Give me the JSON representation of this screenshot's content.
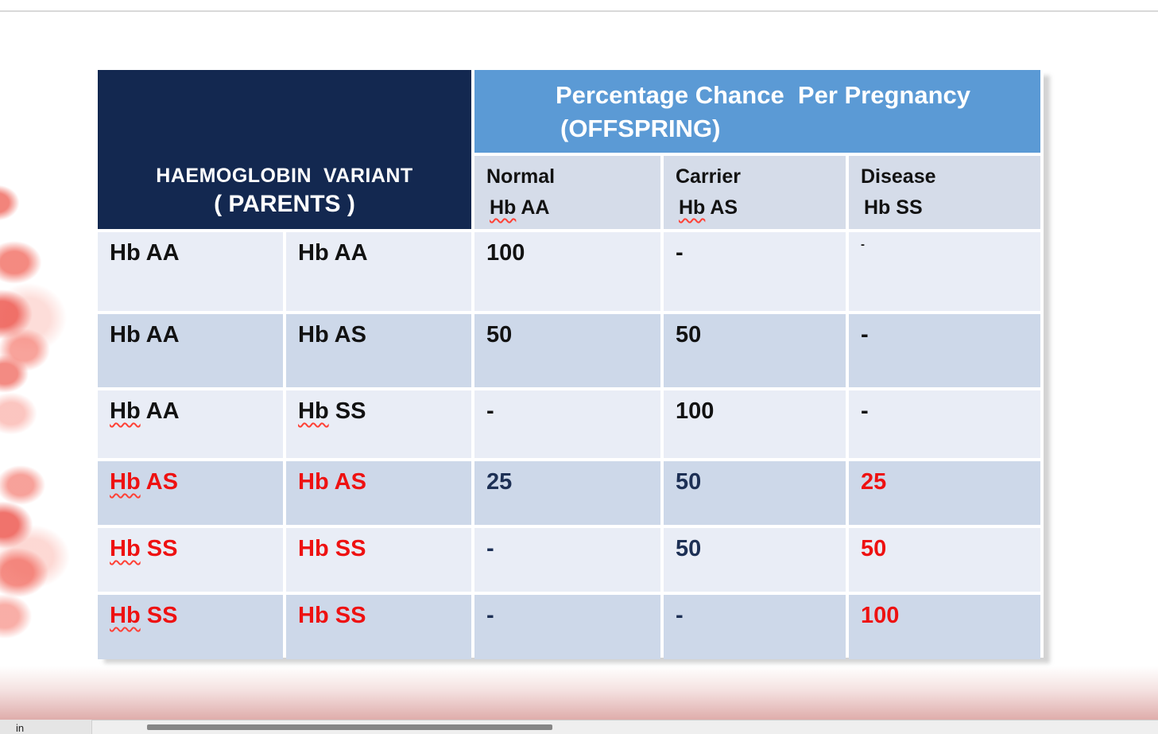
{
  "palette": {
    "header_navy": "#132850",
    "header_blue": "#5b9ad5",
    "subheader_bg": "#d5dce9",
    "row_light": "#e9edf6",
    "row_dark": "#cdd8e9",
    "text_black": "#121212",
    "text_navy": "#1d3055",
    "text_red": "#ee1111",
    "squiggle_red": "#ff4136",
    "bottom_gradient_pink": "#dfadab"
  },
  "slide": {
    "table": {
      "parents_header": {
        "line1": "HAEMOGLOBIN  VARIANT",
        "line2": "( PARENTS )"
      },
      "offspring_header": {
        "line1": "Percentage Chance  Per Pregnancy",
        "line2": "(OFFSPRING)"
      },
      "sub_headers": [
        {
          "label": "Normal",
          "v1": "Hb",
          "v2": " AA"
        },
        {
          "label": "Carrier",
          "v1": "Hb",
          "v2": " AS"
        },
        {
          "label": "Disease",
          "v1": "Hb",
          "v2": " SS"
        }
      ],
      "rows": [
        {
          "p1": {
            "w1": "Hb",
            "w2": " AA"
          },
          "p2": {
            "w1": "Hb",
            "w2": " AA"
          },
          "normal": "100",
          "carrier": "-",
          "disease": "-"
        },
        {
          "p1": {
            "w1": "Hb",
            "w2": " AA"
          },
          "p2": {
            "w1": "Hb",
            "w2": " AS"
          },
          "normal": "50",
          "carrier": "50",
          "disease": "-"
        },
        {
          "p1": {
            "w1": "Hb",
            "w2": " AA"
          },
          "p2": {
            "w1": "Hb",
            "w2": " SS"
          },
          "normal": "-",
          "carrier": "100",
          "disease": "-"
        },
        {
          "p1": {
            "w1": "Hb",
            "w2": " AS"
          },
          "p2": {
            "w1": "Hb",
            "w2": " AS"
          },
          "normal": "25",
          "carrier": "50",
          "disease": "25"
        },
        {
          "p1": {
            "w1": "Hb",
            "w2": " SS"
          },
          "p2": {
            "w1": "Hb",
            "w2": " SS"
          },
          "normal": "-",
          "carrier": "50",
          "disease": "50"
        },
        {
          "p1": {
            "w1": "Hb",
            "w2": " SS"
          },
          "p2": {
            "w1": "Hb",
            "w2": " SS"
          },
          "normal": "-",
          "carrier": "-",
          "disease": "100"
        }
      ]
    }
  },
  "browser": {
    "status_text": "in"
  }
}
